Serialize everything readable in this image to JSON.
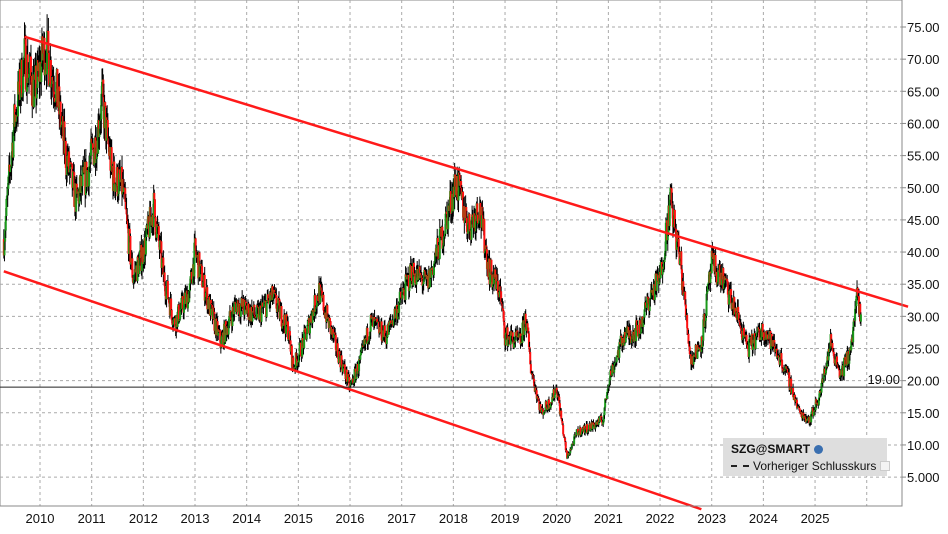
{
  "chart_data": {
    "type": "candlestick",
    "symbol": "SZG@SMART",
    "title": "",
    "xlabel": "",
    "ylabel": "",
    "ylim": [
      0,
      79
    ],
    "y_ticks": [
      "5.000",
      "10.00",
      "15.00",
      "20.00",
      "25.00",
      "30.00",
      "35.00",
      "40.00",
      "45.00",
      "50.00",
      "55.00",
      "60.00",
      "65.00",
      "70.00",
      "75.00"
    ],
    "x_ticks": [
      "2010",
      "2011",
      "2012",
      "2013",
      "2014",
      "2015",
      "2016",
      "2017",
      "2018",
      "2019",
      "2020",
      "2021",
      "2022",
      "2023",
      "2024",
      "2025"
    ],
    "grid": true,
    "reference_line": {
      "label": "19.00",
      "value": 19.0
    },
    "legend": {
      "position": "lower-right",
      "title": "SZG@SMART",
      "items": [
        "Vorheriger Schlusskurs"
      ]
    },
    "trend_channel": {
      "upper": [
        {
          "x": 2009.7,
          "y": 73.5
        },
        {
          "x": 2026.8,
          "y": 31.5
        }
      ],
      "lower": [
        {
          "x": 2009.3,
          "y": 37.0
        },
        {
          "x": 2022.8,
          "y": 0.0
        }
      ]
    },
    "approx_closes": [
      {
        "x": 2009.3,
        "y": 42
      },
      {
        "x": 2009.5,
        "y": 60
      },
      {
        "x": 2009.7,
        "y": 70
      },
      {
        "x": 2009.9,
        "y": 65
      },
      {
        "x": 2010.1,
        "y": 72
      },
      {
        "x": 2010.3,
        "y": 66
      },
      {
        "x": 2010.5,
        "y": 55
      },
      {
        "x": 2010.7,
        "y": 48
      },
      {
        "x": 2010.9,
        "y": 52
      },
      {
        "x": 2011.1,
        "y": 58
      },
      {
        "x": 2011.2,
        "y": 64
      },
      {
        "x": 2011.4,
        "y": 52
      },
      {
        "x": 2011.6,
        "y": 50
      },
      {
        "x": 2011.8,
        "y": 36
      },
      {
        "x": 2012.0,
        "y": 40
      },
      {
        "x": 2012.2,
        "y": 47
      },
      {
        "x": 2012.4,
        "y": 36
      },
      {
        "x": 2012.6,
        "y": 29
      },
      {
        "x": 2012.9,
        "y": 34
      },
      {
        "x": 2013.0,
        "y": 40
      },
      {
        "x": 2013.3,
        "y": 31
      },
      {
        "x": 2013.5,
        "y": 26
      },
      {
        "x": 2013.8,
        "y": 32
      },
      {
        "x": 2014.2,
        "y": 30
      },
      {
        "x": 2014.5,
        "y": 33
      },
      {
        "x": 2014.8,
        "y": 28
      },
      {
        "x": 2014.9,
        "y": 22
      },
      {
        "x": 2015.1,
        "y": 26
      },
      {
        "x": 2015.4,
        "y": 34
      },
      {
        "x": 2015.7,
        "y": 26
      },
      {
        "x": 2016.0,
        "y": 19
      },
      {
        "x": 2016.2,
        "y": 23
      },
      {
        "x": 2016.4,
        "y": 29
      },
      {
        "x": 2016.7,
        "y": 27
      },
      {
        "x": 2017.0,
        "y": 33
      },
      {
        "x": 2017.2,
        "y": 37
      },
      {
        "x": 2017.5,
        "y": 35
      },
      {
        "x": 2017.8,
        "y": 43
      },
      {
        "x": 2018.05,
        "y": 51
      },
      {
        "x": 2018.3,
        "y": 44
      },
      {
        "x": 2018.5,
        "y": 47
      },
      {
        "x": 2018.7,
        "y": 37
      },
      {
        "x": 2018.9,
        "y": 34
      },
      {
        "x": 2019.0,
        "y": 27
      },
      {
        "x": 2019.3,
        "y": 26
      },
      {
        "x": 2019.4,
        "y": 30
      },
      {
        "x": 2019.5,
        "y": 22
      },
      {
        "x": 2019.7,
        "y": 15
      },
      {
        "x": 2019.9,
        "y": 17
      },
      {
        "x": 2020.0,
        "y": 19
      },
      {
        "x": 2020.2,
        "y": 8
      },
      {
        "x": 2020.4,
        "y": 12
      },
      {
        "x": 2020.7,
        "y": 13
      },
      {
        "x": 2020.9,
        "y": 14
      },
      {
        "x": 2021.0,
        "y": 20
      },
      {
        "x": 2021.3,
        "y": 27
      },
      {
        "x": 2021.6,
        "y": 28
      },
      {
        "x": 2021.8,
        "y": 33
      },
      {
        "x": 2022.0,
        "y": 36
      },
      {
        "x": 2022.2,
        "y": 48
      },
      {
        "x": 2022.4,
        "y": 38
      },
      {
        "x": 2022.6,
        "y": 23
      },
      {
        "x": 2022.8,
        "y": 26
      },
      {
        "x": 2023.0,
        "y": 38
      },
      {
        "x": 2023.2,
        "y": 36
      },
      {
        "x": 2023.5,
        "y": 30
      },
      {
        "x": 2023.7,
        "y": 25
      },
      {
        "x": 2024.0,
        "y": 28
      },
      {
        "x": 2024.3,
        "y": 24
      },
      {
        "x": 2024.5,
        "y": 20
      },
      {
        "x": 2024.7,
        "y": 15
      },
      {
        "x": 2024.9,
        "y": 14
      },
      {
        "x": 2025.1,
        "y": 18
      },
      {
        "x": 2025.3,
        "y": 26
      },
      {
        "x": 2025.5,
        "y": 21
      },
      {
        "x": 2025.7,
        "y": 25
      },
      {
        "x": 2025.8,
        "y": 33
      },
      {
        "x": 2025.9,
        "y": 29
      }
    ]
  },
  "legend": {
    "symbol": "SZG@SMART",
    "item_label": "Vorheriger Schlusskurs"
  },
  "reference_label": "19.00"
}
